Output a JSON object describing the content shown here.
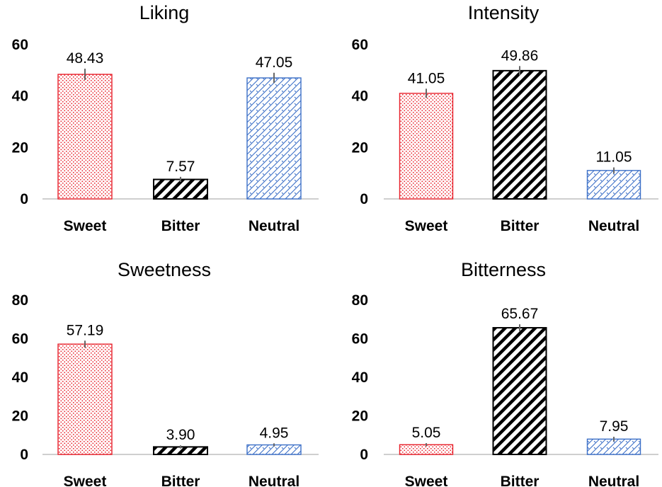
{
  "chart_data": [
    {
      "type": "bar",
      "title": "Liking",
      "categories": [
        "Sweet",
        "Bitter",
        "Neutral"
      ],
      "values": [
        48.43,
        7.57,
        47.05
      ],
      "labels": [
        "48.43",
        "7.57",
        "47.05"
      ],
      "errors": [
        2.2,
        1.0,
        2.0
      ],
      "ylim": [
        0,
        60
      ],
      "yticks": [
        0,
        20,
        40,
        60
      ],
      "xlabel": "",
      "ylabel": ""
    },
    {
      "type": "bar",
      "title": "Intensity",
      "categories": [
        "Sweet",
        "Bitter",
        "Neutral"
      ],
      "values": [
        41.05,
        49.86,
        11.05
      ],
      "labels": [
        "41.05",
        "49.86",
        "11.05"
      ],
      "errors": [
        1.8,
        1.8,
        1.2
      ],
      "ylim": [
        0,
        60
      ],
      "yticks": [
        0,
        20,
        40,
        60
      ],
      "xlabel": "",
      "ylabel": ""
    },
    {
      "type": "bar",
      "title": "Sweetness",
      "categories": [
        "Sweet",
        "Bitter",
        "Neutral"
      ],
      "values": [
        57.19,
        3.9,
        4.95
      ],
      "labels": [
        "57.19",
        "3.90",
        "4.95"
      ],
      "errors": [
        1.8,
        0.8,
        0.8
      ],
      "ylim": [
        0,
        80
      ],
      "yticks": [
        0,
        20,
        40,
        60,
        80
      ],
      "xlabel": "",
      "ylabel": ""
    },
    {
      "type": "bar",
      "title": "Bitterness",
      "categories": [
        "Sweet",
        "Bitter",
        "Neutral"
      ],
      "values": [
        5.05,
        65.67,
        7.95
      ],
      "labels": [
        "5.05",
        "65.67",
        "7.95"
      ],
      "errors": [
        0.8,
        1.8,
        1.2
      ],
      "ylim": [
        0,
        80
      ],
      "yticks": [
        0,
        20,
        40,
        60,
        80
      ],
      "xlabel": "",
      "ylabel": ""
    }
  ],
  "style": {
    "bar_colors": [
      "#e8202a",
      "#000000",
      "#3b6fc7"
    ],
    "bar_patterns": [
      "dots",
      "wide-diagonal",
      "crosshatch"
    ],
    "error_color": "#666666",
    "axis_color": "#bfbfbf"
  }
}
